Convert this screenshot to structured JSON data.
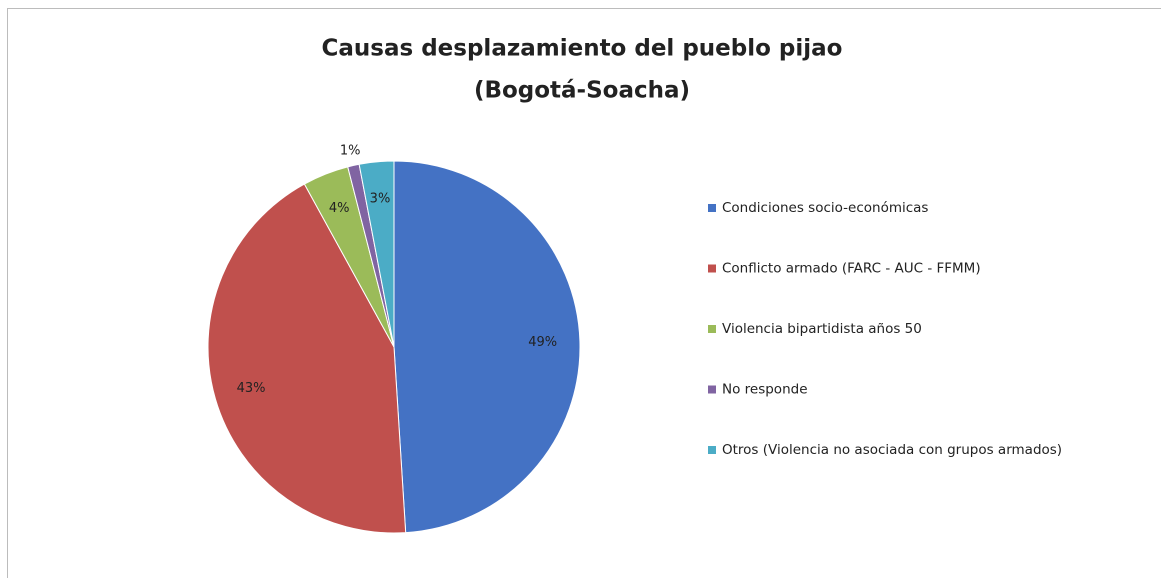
{
  "chart_data": {
    "type": "pie",
    "title": "Causas desplazamiento del pueblo pijao",
    "subtitle": "(Bogotá-Soacha)",
    "categories": [
      "Condiciones socio-económicas",
      "Conflicto armado (FARC - AUC - FFMM)",
      "Violencia bipartidista años 50",
      "No responde",
      "Otros (Violencia no asociada con grupos armados)"
    ],
    "values": [
      49,
      43,
      4,
      1,
      3
    ],
    "value_labels": [
      "49%",
      "43%",
      "4%",
      "1%",
      "3%"
    ],
    "colors": [
      "#4472c4",
      "#c0504d",
      "#9bbb59",
      "#8064a2",
      "#4bacc6"
    ],
    "legend": "right"
  }
}
